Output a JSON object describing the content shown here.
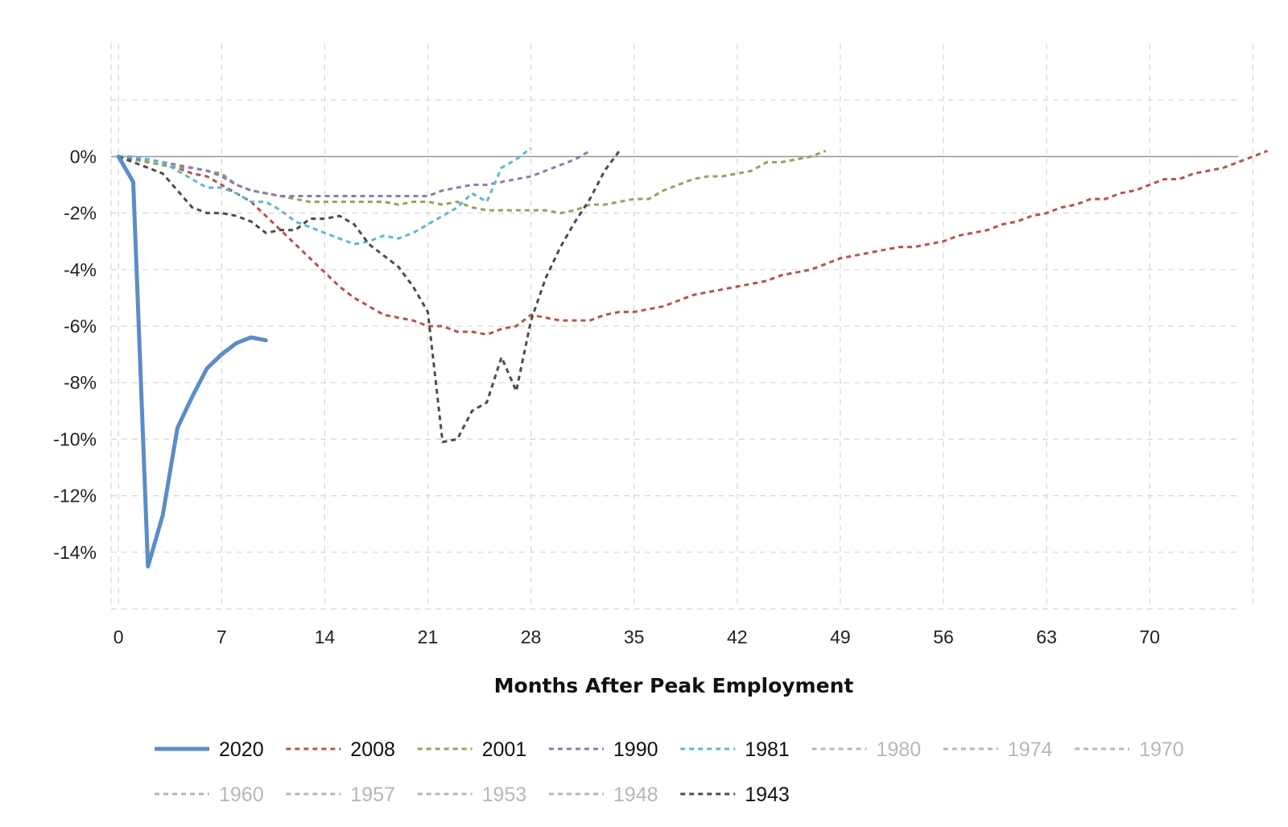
{
  "chart_data": {
    "type": "line",
    "xlabel": "Months After Peak Employment",
    "ylabel": "",
    "xlim": [
      -0.5,
      76
    ],
    "ylim": [
      -16,
      4
    ],
    "x_ticks": [
      0,
      7,
      14,
      21,
      28,
      35,
      42,
      49,
      56,
      63,
      70
    ],
    "x_tick_labels": [
      "0",
      "7",
      "14",
      "21",
      "28",
      "35",
      "42",
      "49",
      "56",
      "63",
      "70"
    ],
    "y_ticks": [
      0,
      -2,
      -4,
      -6,
      -8,
      -10,
      -12,
      -14
    ],
    "y_tick_labels": [
      "0%",
      "-2%",
      "-4%",
      "-6%",
      "-8%",
      "-10%",
      "-12%",
      "-14%"
    ],
    "x_grid": [
      0,
      7,
      14,
      21,
      28,
      35,
      42,
      49,
      56,
      63,
      70,
      77
    ],
    "y_grid": [
      2,
      0,
      -2,
      -4,
      -6,
      -8,
      -10,
      -12,
      -14,
      -16
    ],
    "grid": true,
    "zero_line_color": "#9a9a9a",
    "grid_color": "#d6d6d6",
    "legend_placement": "bottom",
    "legend_hidden_color": "#b7b7b7",
    "series": [
      {
        "name": "2020",
        "color": "#5b8cc8",
        "dashed": false,
        "visible": true,
        "points": [
          [
            0,
            0
          ],
          [
            1,
            -0.9
          ],
          [
            2,
            -14.5
          ],
          [
            3,
            -12.7
          ],
          [
            4,
            -9.6
          ],
          [
            5,
            -8.5
          ],
          [
            6,
            -7.5
          ],
          [
            7,
            -7.0
          ],
          [
            8,
            -6.6
          ],
          [
            9,
            -6.4
          ],
          [
            10,
            -6.5
          ]
        ]
      },
      {
        "name": "2008",
        "color": "#b5524f",
        "dashed": true,
        "visible": true,
        "points": [
          [
            0,
            0
          ],
          [
            1,
            -0.1
          ],
          [
            2,
            -0.2
          ],
          [
            3,
            -0.3
          ],
          [
            4,
            -0.4
          ],
          [
            5,
            -0.6
          ],
          [
            6,
            -0.7
          ],
          [
            7,
            -1.0
          ],
          [
            8,
            -1.3
          ],
          [
            9,
            -1.6
          ],
          [
            10,
            -2.1
          ],
          [
            11,
            -2.6
          ],
          [
            12,
            -3.1
          ],
          [
            13,
            -3.6
          ],
          [
            14,
            -4.1
          ],
          [
            15,
            -4.6
          ],
          [
            16,
            -5.0
          ],
          [
            17,
            -5.3
          ],
          [
            18,
            -5.6
          ],
          [
            19,
            -5.7
          ],
          [
            20,
            -5.8
          ],
          [
            21,
            -6.0
          ],
          [
            22,
            -6.0
          ],
          [
            23,
            -6.2
          ],
          [
            24,
            -6.2
          ],
          [
            25,
            -6.3
          ],
          [
            26,
            -6.1
          ],
          [
            27,
            -6.0
          ],
          [
            28,
            -5.6
          ],
          [
            29,
            -5.7
          ],
          [
            30,
            -5.8
          ],
          [
            31,
            -5.8
          ],
          [
            32,
            -5.8
          ],
          [
            33,
            -5.6
          ],
          [
            34,
            -5.5
          ],
          [
            35,
            -5.5
          ],
          [
            36,
            -5.4
          ],
          [
            37,
            -5.3
          ],
          [
            38,
            -5.1
          ],
          [
            39,
            -4.9
          ],
          [
            40,
            -4.8
          ],
          [
            41,
            -4.7
          ],
          [
            42,
            -4.6
          ],
          [
            43,
            -4.5
          ],
          [
            44,
            -4.4
          ],
          [
            45,
            -4.2
          ],
          [
            46,
            -4.1
          ],
          [
            47,
            -4.0
          ],
          [
            48,
            -3.8
          ],
          [
            49,
            -3.6
          ],
          [
            50,
            -3.5
          ],
          [
            51,
            -3.4
          ],
          [
            52,
            -3.3
          ],
          [
            53,
            -3.2
          ],
          [
            54,
            -3.2
          ],
          [
            55,
            -3.1
          ],
          [
            56,
            -3.0
          ],
          [
            57,
            -2.8
          ],
          [
            58,
            -2.7
          ],
          [
            59,
            -2.6
          ],
          [
            60,
            -2.4
          ],
          [
            61,
            -2.3
          ],
          [
            62,
            -2.1
          ],
          [
            63,
            -2.0
          ],
          [
            64,
            -1.8
          ],
          [
            65,
            -1.7
          ],
          [
            66,
            -1.5
          ],
          [
            67,
            -1.5
          ],
          [
            68,
            -1.3
          ],
          [
            69,
            -1.2
          ],
          [
            70,
            -1.0
          ],
          [
            71,
            -0.8
          ],
          [
            72,
            -0.8
          ],
          [
            73,
            -0.6
          ],
          [
            74,
            -0.5
          ],
          [
            75,
            -0.4
          ],
          [
            76,
            -0.2
          ],
          [
            77,
            0.0
          ],
          [
            78,
            0.2
          ]
        ]
      },
      {
        "name": "2001",
        "color": "#8ea559",
        "dashed": true,
        "visible": true,
        "points": [
          [
            0,
            0
          ],
          [
            1,
            -0.1
          ],
          [
            2,
            -0.2
          ],
          [
            3,
            -0.3
          ],
          [
            4,
            -0.4
          ],
          [
            5,
            -0.4
          ],
          [
            6,
            -0.5
          ],
          [
            7,
            -0.6
          ],
          [
            8,
            -1.0
          ],
          [
            9,
            -1.2
          ],
          [
            10,
            -1.3
          ],
          [
            11,
            -1.4
          ],
          [
            12,
            -1.5
          ],
          [
            13,
            -1.6
          ],
          [
            14,
            -1.6
          ],
          [
            15,
            -1.6
          ],
          [
            16,
            -1.6
          ],
          [
            17,
            -1.6
          ],
          [
            18,
            -1.6
          ],
          [
            19,
            -1.7
          ],
          [
            20,
            -1.6
          ],
          [
            21,
            -1.6
          ],
          [
            22,
            -1.7
          ],
          [
            23,
            -1.6
          ],
          [
            24,
            -1.8
          ],
          [
            25,
            -1.9
          ],
          [
            26,
            -1.9
          ],
          [
            27,
            -1.9
          ],
          [
            28,
            -1.9
          ],
          [
            29,
            -1.9
          ],
          [
            30,
            -2.0
          ],
          [
            31,
            -1.9
          ],
          [
            32,
            -1.7
          ],
          [
            33,
            -1.7
          ],
          [
            34,
            -1.6
          ],
          [
            35,
            -1.5
          ],
          [
            36,
            -1.5
          ],
          [
            37,
            -1.2
          ],
          [
            38,
            -1.0
          ],
          [
            39,
            -0.8
          ],
          [
            40,
            -0.7
          ],
          [
            41,
            -0.7
          ],
          [
            42,
            -0.6
          ],
          [
            43,
            -0.5
          ],
          [
            44,
            -0.2
          ],
          [
            45,
            -0.2
          ],
          [
            46,
            -0.1
          ],
          [
            47,
            0.0
          ],
          [
            48,
            0.2
          ]
        ]
      },
      {
        "name": "1990",
        "color": "#8c7ab0",
        "dashed": true,
        "visible": true,
        "points": [
          [
            0,
            0
          ],
          [
            1,
            -0.1
          ],
          [
            2,
            -0.1
          ],
          [
            3,
            -0.2
          ],
          [
            4,
            -0.3
          ],
          [
            5,
            -0.4
          ],
          [
            6,
            -0.5
          ],
          [
            7,
            -0.7
          ],
          [
            8,
            -1.0
          ],
          [
            9,
            -1.2
          ],
          [
            10,
            -1.3
          ],
          [
            11,
            -1.4
          ],
          [
            12,
            -1.4
          ],
          [
            13,
            -1.4
          ],
          [
            14,
            -1.4
          ],
          [
            15,
            -1.4
          ],
          [
            16,
            -1.4
          ],
          [
            17,
            -1.4
          ],
          [
            18,
            -1.4
          ],
          [
            19,
            -1.4
          ],
          [
            20,
            -1.4
          ],
          [
            21,
            -1.4
          ],
          [
            22,
            -1.2
          ],
          [
            23,
            -1.1
          ],
          [
            24,
            -1.0
          ],
          [
            25,
            -1.0
          ],
          [
            26,
            -0.9
          ],
          [
            27,
            -0.8
          ],
          [
            28,
            -0.7
          ],
          [
            29,
            -0.5
          ],
          [
            30,
            -0.3
          ],
          [
            31,
            -0.1
          ],
          [
            32,
            0.2
          ]
        ]
      },
      {
        "name": "1981",
        "color": "#5fb5cf",
        "dashed": true,
        "visible": true,
        "points": [
          [
            0,
            0
          ],
          [
            1,
            0.0
          ],
          [
            2,
            -0.1
          ],
          [
            3,
            -0.2
          ],
          [
            4,
            -0.5
          ],
          [
            5,
            -0.8
          ],
          [
            6,
            -1.1
          ],
          [
            7,
            -1.1
          ],
          [
            8,
            -1.3
          ],
          [
            9,
            -1.6
          ],
          [
            10,
            -1.6
          ],
          [
            11,
            -1.9
          ],
          [
            12,
            -2.3
          ],
          [
            13,
            -2.5
          ],
          [
            14,
            -2.7
          ],
          [
            15,
            -2.9
          ],
          [
            16,
            -3.1
          ],
          [
            17,
            -3.0
          ],
          [
            18,
            -2.8
          ],
          [
            19,
            -2.9
          ],
          [
            20,
            -2.7
          ],
          [
            21,
            -2.4
          ],
          [
            22,
            -2.1
          ],
          [
            23,
            -1.8
          ],
          [
            24,
            -1.3
          ],
          [
            25,
            -1.6
          ],
          [
            26,
            -0.4
          ],
          [
            27,
            -0.1
          ],
          [
            28,
            0.3
          ]
        ]
      },
      {
        "name": "1980",
        "color": "#b7b7b7",
        "dashed": true,
        "visible": false,
        "points": []
      },
      {
        "name": "1974",
        "color": "#b7b7b7",
        "dashed": true,
        "visible": false,
        "points": []
      },
      {
        "name": "1970",
        "color": "#b7b7b7",
        "dashed": true,
        "visible": false,
        "points": []
      },
      {
        "name": "1960",
        "color": "#b7b7b7",
        "dashed": true,
        "visible": false,
        "points": []
      },
      {
        "name": "1957",
        "color": "#b7b7b7",
        "dashed": true,
        "visible": false,
        "points": []
      },
      {
        "name": "1953",
        "color": "#b7b7b7",
        "dashed": true,
        "visible": false,
        "points": []
      },
      {
        "name": "1948",
        "color": "#b7b7b7",
        "dashed": true,
        "visible": false,
        "points": []
      },
      {
        "name": "1943",
        "color": "#4a4a55",
        "dashed": true,
        "visible": true,
        "points": [
          [
            0,
            0
          ],
          [
            1,
            -0.2
          ],
          [
            2,
            -0.4
          ],
          [
            3,
            -0.6
          ],
          [
            4,
            -1.2
          ],
          [
            5,
            -1.8
          ],
          [
            6,
            -2.0
          ],
          [
            7,
            -2.0
          ],
          [
            8,
            -2.1
          ],
          [
            9,
            -2.3
          ],
          [
            10,
            -2.7
          ],
          [
            11,
            -2.6
          ],
          [
            12,
            -2.6
          ],
          [
            13,
            -2.2
          ],
          [
            14,
            -2.2
          ],
          [
            15,
            -2.1
          ],
          [
            16,
            -2.4
          ],
          [
            17,
            -3.1
          ],
          [
            18,
            -3.5
          ],
          [
            19,
            -3.9
          ],
          [
            20,
            -4.6
          ],
          [
            21,
            -5.5
          ],
          [
            22,
            -10.1
          ],
          [
            23,
            -10.0
          ],
          [
            24,
            -9.0
          ],
          [
            25,
            -8.7
          ],
          [
            26,
            -7.1
          ],
          [
            27,
            -8.3
          ],
          [
            28,
            -5.8
          ],
          [
            29,
            -4.3
          ],
          [
            30,
            -3.2
          ],
          [
            31,
            -2.3
          ],
          [
            32,
            -1.5
          ],
          [
            33,
            -0.5
          ],
          [
            34,
            0.2
          ]
        ]
      }
    ]
  }
}
